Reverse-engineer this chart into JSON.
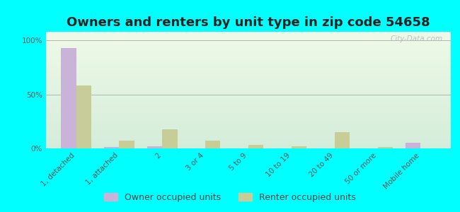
{
  "title": "Owners and renters by unit type in zip code 54658",
  "categories": [
    "1, detached",
    "1, attached",
    "2",
    "3 or 4",
    "5 to 9",
    "10 to 19",
    "20 to 49",
    "50 or more",
    "Mobile home"
  ],
  "owner_values": [
    93,
    1,
    2,
    0,
    0,
    0,
    0,
    0,
    5
  ],
  "renter_values": [
    58,
    7,
    18,
    7,
    3,
    2,
    15,
    1,
    0
  ],
  "owner_color": "#c9b3d9",
  "renter_color": "#c8cc96",
  "bg_color_top": "#d4edda",
  "bg_color_bottom": "#f0fae8",
  "outer_bg": "#00ffff",
  "yticks": [
    0,
    50,
    100
  ],
  "ylabels": [
    "0%",
    "50%",
    "100%"
  ],
  "ylim": [
    0,
    108
  ],
  "bar_width": 0.35,
  "legend_owner": "Owner occupied units",
  "legend_renter": "Renter occupied units",
  "title_fontsize": 13,
  "axis_fontsize": 7.5,
  "legend_fontsize": 9
}
